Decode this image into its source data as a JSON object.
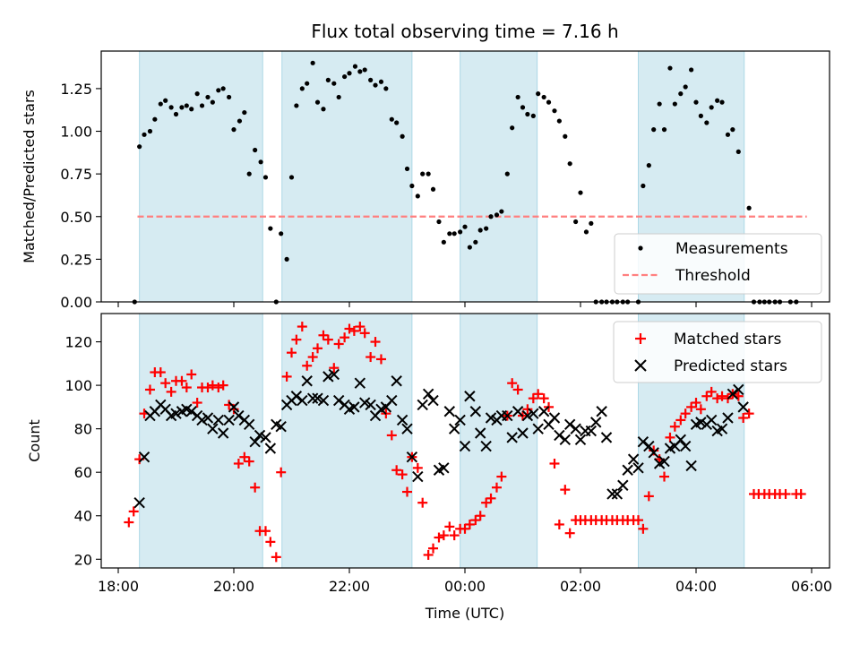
{
  "figure": {
    "title": "Flux total observing time = 7.16 h",
    "xlabel": "Time (UTC)"
  },
  "colors": {
    "band": "#add8e6",
    "measurement": "#000000",
    "threshold": "#ff7f7f",
    "matched": "#ff0000",
    "predicted": "#000000"
  },
  "chart_data": [
    {
      "type": "scatter",
      "ylabel": "Matched/Predicted stars",
      "ylim": [
        0,
        1.47
      ],
      "yticks": [
        0.0,
        0.25,
        0.5,
        0.75,
        1.0,
        1.25
      ],
      "ytick_labels": [
        "0.00",
        "0.25",
        "0.50",
        "0.75",
        "1.00",
        "1.25"
      ],
      "grid": false,
      "legend": "lower right",
      "threshold": {
        "name": "Threshold",
        "y": 0.5,
        "x_start": "18:20",
        "x_end": "05:55"
      },
      "series": [
        {
          "name": "Measurements",
          "x": [
            "18:17",
            "18:22",
            "18:27",
            "18:33",
            "18:38",
            "18:44",
            "18:49",
            "18:55",
            "19:00",
            "19:06",
            "19:11",
            "19:16",
            "19:22",
            "19:27",
            "19:33",
            "19:38",
            "19:44",
            "19:49",
            "19:55",
            "20:00",
            "20:06",
            "20:11",
            "20:16",
            "20:22",
            "20:28",
            "20:33",
            "20:38",
            "20:44",
            "20:49",
            "20:55",
            "21:00",
            "21:05",
            "21:11",
            "21:16",
            "21:22",
            "21:27",
            "21:33",
            "21:38",
            "21:44",
            "21:49",
            "21:55",
            "22:00",
            "22:06",
            "22:11",
            "22:16",
            "22:22",
            "22:27",
            "22:33",
            "22:38",
            "22:44",
            "22:49",
            "22:55",
            "23:00",
            "23:05",
            "23:11",
            "23:16",
            "23:22",
            "23:27",
            "23:33",
            "23:38",
            "23:44",
            "23:49",
            "23:55",
            "00:00",
            "00:05",
            "00:11",
            "00:16",
            "00:22",
            "00:27",
            "00:33",
            "00:38",
            "00:44",
            "00:49",
            "00:55",
            "01:00",
            "01:05",
            "01:11",
            "01:16",
            "01:22",
            "01:27",
            "01:33",
            "01:38",
            "01:44",
            "01:49",
            "01:55",
            "02:00",
            "02:06",
            "02:11",
            "02:16",
            "02:22",
            "02:27",
            "02:33",
            "02:38",
            "02:44",
            "02:49",
            "03:00",
            "03:05",
            "03:11",
            "03:16",
            "03:22",
            "03:27",
            "03:33",
            "03:38",
            "03:44",
            "03:49",
            "03:55",
            "04:00",
            "04:05",
            "04:11",
            "04:16",
            "04:22",
            "04:27",
            "04:33",
            "04:38",
            "04:44",
            "04:55",
            "05:00",
            "05:06",
            "05:11",
            "05:16",
            "05:22",
            "05:27",
            "05:38",
            "05:44"
          ],
          "y": [
            0.0,
            0.91,
            0.98,
            1.0,
            1.07,
            1.16,
            1.18,
            1.14,
            1.1,
            1.14,
            1.15,
            1.13,
            1.22,
            1.15,
            1.2,
            1.17,
            1.24,
            1.25,
            1.2,
            1.01,
            1.06,
            1.11,
            0.75,
            0.89,
            0.82,
            0.73,
            0.43,
            0.0,
            0.4,
            0.25,
            0.73,
            1.15,
            1.25,
            1.28,
            1.4,
            1.17,
            1.13,
            1.3,
            1.28,
            1.2,
            1.32,
            1.34,
            1.38,
            1.35,
            1.36,
            1.3,
            1.27,
            1.29,
            1.25,
            1.07,
            1.05,
            0.97,
            0.78,
            0.68,
            0.62,
            0.75,
            0.75,
            0.66,
            0.47,
            0.35,
            0.4,
            0.4,
            0.41,
            0.44,
            0.32,
            0.35,
            0.42,
            0.43,
            0.5,
            0.51,
            0.53,
            0.75,
            1.02,
            1.2,
            1.14,
            1.1,
            1.09,
            1.22,
            1.2,
            1.17,
            1.12,
            1.06,
            0.97,
            0.81,
            0.47,
            0.64,
            0.41,
            0.46,
            0.0,
            0.0,
            0.0,
            0.0,
            0.0,
            0.0,
            0.0,
            0.0,
            0.68,
            0.8,
            1.01,
            1.16,
            1.01,
            1.37,
            1.16,
            1.22,
            1.26,
            1.36,
            1.17,
            1.09,
            1.05,
            1.14,
            1.18,
            1.17,
            0.98,
            1.01,
            0.88,
            0.55,
            0.0,
            0.0,
            0.0,
            0.0,
            0.0,
            0.0,
            0.0,
            0.0
          ]
        }
      ]
    },
    {
      "type": "scatter",
      "ylabel": "Count",
      "ylim": [
        16,
        133
      ],
      "yticks": [
        20,
        40,
        60,
        80,
        100,
        120
      ],
      "ytick_labels": [
        "20",
        "40",
        "60",
        "80",
        "100",
        "120"
      ],
      "xticks": [
        "18:00",
        "20:00",
        "22:00",
        "00:00",
        "02:00",
        "04:00",
        "06:00"
      ],
      "grid": false,
      "legend": "upper right",
      "series": [
        {
          "name": "Matched stars",
          "marker": "plus",
          "x": [
            "18:11",
            "18:16",
            "18:22",
            "18:27",
            "18:33",
            "18:38",
            "18:44",
            "18:49",
            "18:55",
            "19:00",
            "19:06",
            "19:11",
            "19:16",
            "19:22",
            "19:27",
            "19:33",
            "19:38",
            "19:44",
            "19:49",
            "19:55",
            "20:00",
            "20:05",
            "20:11",
            "20:16",
            "20:22",
            "20:27",
            "20:33",
            "20:38",
            "20:44",
            "20:49",
            "20:55",
            "21:00",
            "21:05",
            "21:11",
            "21:16",
            "21:22",
            "21:27",
            "21:33",
            "21:38",
            "21:44",
            "21:49",
            "21:55",
            "22:00",
            "22:05",
            "22:11",
            "22:16",
            "22:22",
            "22:27",
            "22:33",
            "22:38",
            "22:44",
            "22:49",
            "22:55",
            "23:00",
            "23:05",
            "23:11",
            "23:16",
            "23:22",
            "23:27",
            "23:33",
            "23:38",
            "23:44",
            "23:49",
            "23:55",
            "00:00",
            "00:05",
            "00:11",
            "00:16",
            "00:22",
            "00:27",
            "00:33",
            "00:38",
            "00:44",
            "00:49",
            "00:55",
            "01:00",
            "01:05",
            "01:11",
            "01:16",
            "01:22",
            "01:27",
            "01:33",
            "01:38",
            "01:44",
            "01:49",
            "01:55",
            "02:00",
            "02:05",
            "02:11",
            "02:16",
            "02:22",
            "02:27",
            "02:33",
            "02:38",
            "02:44",
            "02:49",
            "02:55",
            "03:00",
            "03:05",
            "03:11",
            "03:16",
            "03:22",
            "03:27",
            "03:33",
            "03:38",
            "03:44",
            "03:49",
            "03:55",
            "04:00",
            "04:05",
            "04:11",
            "04:16",
            "04:22",
            "04:27",
            "04:33",
            "04:38",
            "04:44",
            "04:49",
            "04:55",
            "05:00",
            "05:05",
            "05:11",
            "05:16",
            "05:22",
            "05:27",
            "05:33",
            "05:44",
            "05:49"
          ],
          "y": [
            37,
            42,
            66,
            87,
            98,
            106,
            106,
            101,
            97,
            102,
            102,
            99,
            105,
            92,
            99,
            99,
            100,
            99,
            100,
            91,
            89,
            64,
            67,
            65,
            53,
            33,
            33,
            28,
            21,
            60,
            104,
            115,
            121,
            127,
            109,
            113,
            117,
            123,
            121,
            108,
            119,
            122,
            126,
            125,
            127,
            124,
            113,
            120,
            112,
            87,
            77,
            61,
            59,
            51,
            67,
            62,
            46,
            22,
            25,
            30,
            31,
            35,
            31,
            34,
            34,
            36,
            38,
            40,
            46,
            48,
            53,
            58,
            86,
            101,
            98,
            86,
            89,
            94,
            96,
            94,
            90,
            64,
            36,
            52,
            32,
            38,
            38,
            38,
            38,
            38,
            38,
            38,
            38,
            38,
            38,
            38,
            38,
            38,
            34,
            49,
            70,
            66,
            58,
            76,
            81,
            84,
            87,
            90,
            92,
            89,
            95,
            97,
            94,
            95,
            94,
            96,
            95,
            85,
            87,
            50,
            50,
            50,
            50,
            50,
            50,
            50,
            50,
            50
          ]
        },
        {
          "name": "Predicted stars",
          "marker": "x",
          "x": [
            "18:22",
            "18:27",
            "18:33",
            "18:38",
            "18:44",
            "18:49",
            "18:55",
            "19:00",
            "19:06",
            "19:11",
            "19:16",
            "19:22",
            "19:27",
            "19:33",
            "19:38",
            "19:44",
            "19:49",
            "19:55",
            "20:00",
            "20:05",
            "20:11",
            "20:16",
            "20:22",
            "20:27",
            "20:33",
            "20:38",
            "20:44",
            "20:49",
            "20:55",
            "21:00",
            "21:05",
            "21:11",
            "21:16",
            "21:22",
            "21:27",
            "21:33",
            "21:38",
            "21:44",
            "21:49",
            "21:55",
            "22:00",
            "22:05",
            "22:11",
            "22:16",
            "22:22",
            "22:27",
            "22:33",
            "22:38",
            "22:44",
            "22:49",
            "22:55",
            "23:00",
            "23:05",
            "23:11",
            "23:16",
            "23:22",
            "23:27",
            "23:33",
            "23:38",
            "23:44",
            "23:49",
            "23:55",
            "00:00",
            "00:05",
            "00:11",
            "00:16",
            "00:22",
            "00:27",
            "00:33",
            "00:38",
            "00:44",
            "00:49",
            "00:55",
            "01:00",
            "01:05",
            "01:11",
            "01:16",
            "01:22",
            "01:27",
            "01:33",
            "01:38",
            "01:44",
            "01:49",
            "01:55",
            "02:00",
            "02:05",
            "02:11",
            "02:16",
            "02:22",
            "02:27",
            "02:33",
            "02:38",
            "02:44",
            "02:49",
            "02:55",
            "03:00",
            "03:05",
            "03:11",
            "03:16",
            "03:22",
            "03:27",
            "03:33",
            "03:38",
            "03:44",
            "03:49",
            "03:55",
            "04:00",
            "04:05",
            "04:11",
            "04:16",
            "04:22",
            "04:27",
            "04:33",
            "04:38",
            "04:44",
            "04:49"
          ],
          "y": [
            46,
            67,
            86,
            88,
            91,
            89,
            86,
            87,
            88,
            89,
            88,
            86,
            84,
            85,
            80,
            84,
            78,
            84,
            90,
            86,
            84,
            82,
            74,
            77,
            76,
            71,
            82,
            81,
            91,
            93,
            95,
            93,
            102,
            94,
            94,
            93,
            104,
            105,
            93,
            91,
            89,
            90,
            101,
            92,
            91,
            86,
            89,
            90,
            93,
            102,
            84,
            80,
            67,
            58,
            91,
            96,
            93,
            61,
            62,
            88,
            80,
            84,
            72,
            95,
            88,
            78,
            72,
            85,
            84,
            86,
            86,
            76,
            88,
            78,
            86,
            87,
            80,
            88,
            82,
            85,
            77,
            75,
            82,
            80,
            75,
            79,
            79,
            83,
            88,
            76,
            50,
            50,
            54,
            61,
            66,
            62,
            74,
            72,
            69,
            64,
            65,
            71,
            72,
            75,
            72,
            63,
            82,
            83,
            82,
            84,
            79,
            80,
            85,
            96,
            98,
            90
          ],
          "x_corrected": true
        }
      ]
    }
  ]
}
